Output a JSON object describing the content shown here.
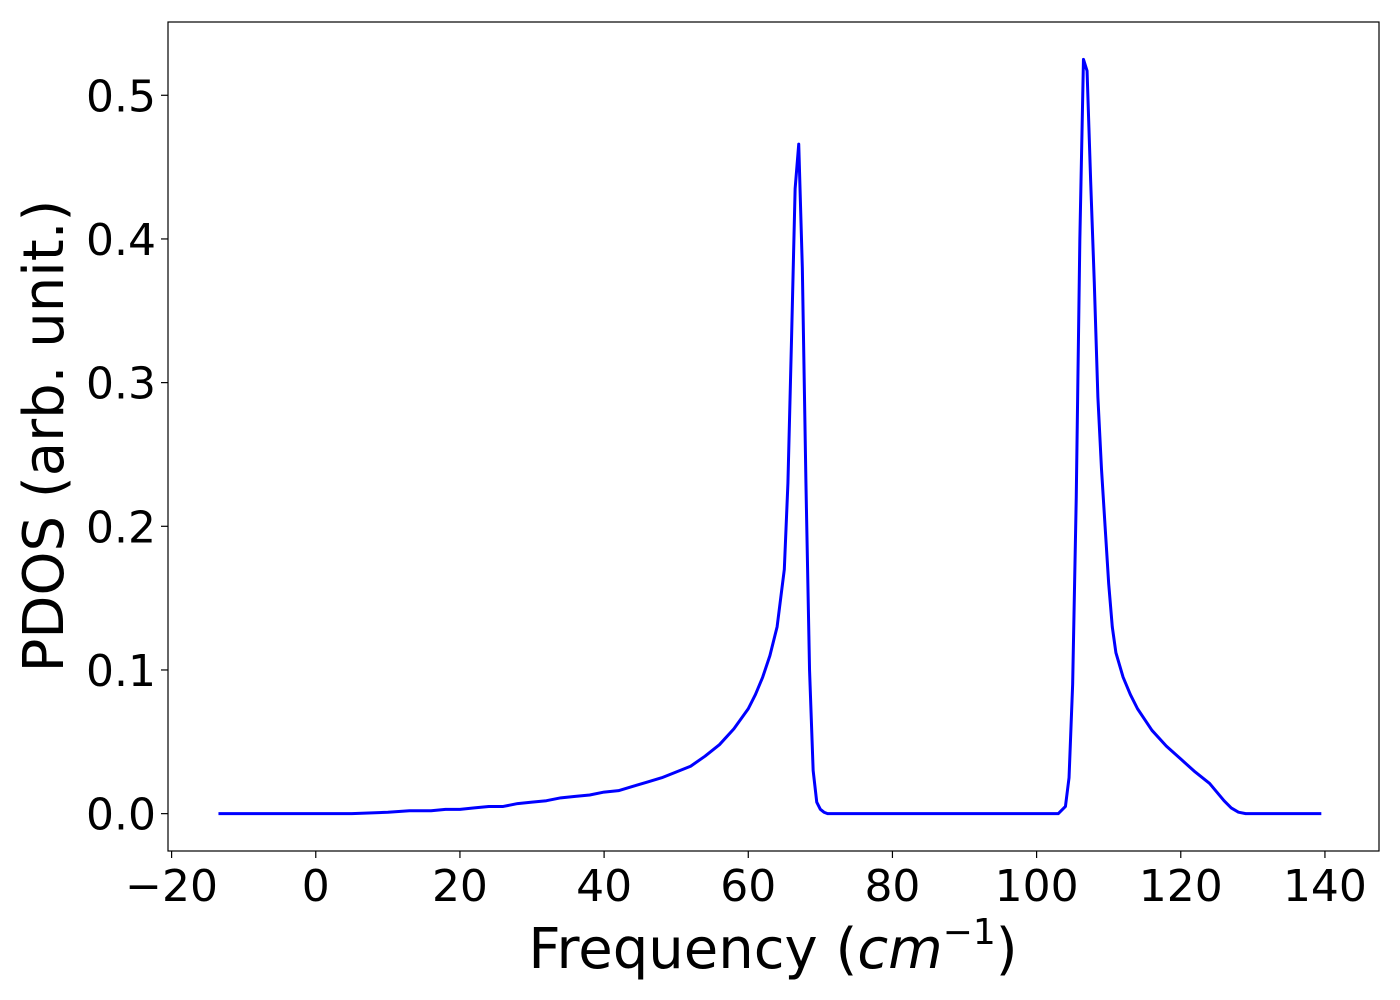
{
  "chart_data": {
    "type": "line",
    "title": "",
    "xlabel_text": "Frequency (",
    "xlabel_math": "cm",
    "xlabel_sup": "−1",
    "xlabel_close": ")",
    "ylabel": "PDOS (arb. unit.)",
    "xlim": [
      -20.5,
      147.5
    ],
    "ylim": [
      -0.026,
      0.551
    ],
    "x_ticks": [
      -20,
      0,
      20,
      40,
      60,
      80,
      100,
      120,
      140
    ],
    "x_tick_labels": [
      "−20",
      "0",
      "20",
      "40",
      "60",
      "80",
      "100",
      "120",
      "140"
    ],
    "y_ticks": [
      0.0,
      0.1,
      0.2,
      0.3,
      0.4,
      0.5
    ],
    "y_tick_labels": [
      "0.0",
      "0.1",
      "0.2",
      "0.3",
      "0.4",
      "0.5"
    ],
    "grid": false,
    "line_color": "#0000ff",
    "series": [
      {
        "x": [
          -13.5,
          -5,
          0,
          5,
          10,
          13,
          16,
          18,
          20,
          22,
          24,
          26,
          28,
          30,
          32,
          34,
          36,
          38,
          40,
          42,
          44,
          46,
          48,
          50,
          52,
          54,
          56,
          58,
          60,
          61,
          62,
          63,
          64,
          65,
          65.5,
          66,
          66.5,
          67,
          67.5,
          68,
          68.5,
          69,
          69.5,
          70,
          70.5,
          71,
          72,
          73,
          80,
          90,
          100,
          103,
          104,
          104.5,
          105,
          105.5,
          106,
          106.5,
          107,
          107.5,
          108,
          108.5,
          109,
          109.5,
          110,
          110.5,
          111,
          112,
          113,
          114,
          116,
          118,
          120,
          122,
          124,
          125,
          126,
          127,
          128,
          129,
          130,
          135,
          139.5
        ],
        "y": [
          0.0,
          0.0,
          0.0,
          0.0,
          0.001,
          0.002,
          0.002,
          0.003,
          0.003,
          0.004,
          0.005,
          0.005,
          0.007,
          0.008,
          0.009,
          0.011,
          0.012,
          0.013,
          0.015,
          0.016,
          0.019,
          0.022,
          0.025,
          0.029,
          0.033,
          0.04,
          0.048,
          0.059,
          0.073,
          0.083,
          0.095,
          0.11,
          0.13,
          0.17,
          0.23,
          0.33,
          0.435,
          0.466,
          0.38,
          0.23,
          0.1,
          0.03,
          0.008,
          0.003,
          0.001,
          0.0,
          0.0,
          0.0,
          0.0,
          0.0,
          0.0,
          0.0,
          0.005,
          0.025,
          0.09,
          0.22,
          0.4,
          0.525,
          0.517,
          0.44,
          0.37,
          0.29,
          0.24,
          0.2,
          0.16,
          0.13,
          0.112,
          0.095,
          0.083,
          0.073,
          0.058,
          0.047,
          0.038,
          0.029,
          0.021,
          0.015,
          0.009,
          0.004,
          0.001,
          0.0,
          0.0,
          0.0,
          0.0
        ]
      }
    ]
  }
}
